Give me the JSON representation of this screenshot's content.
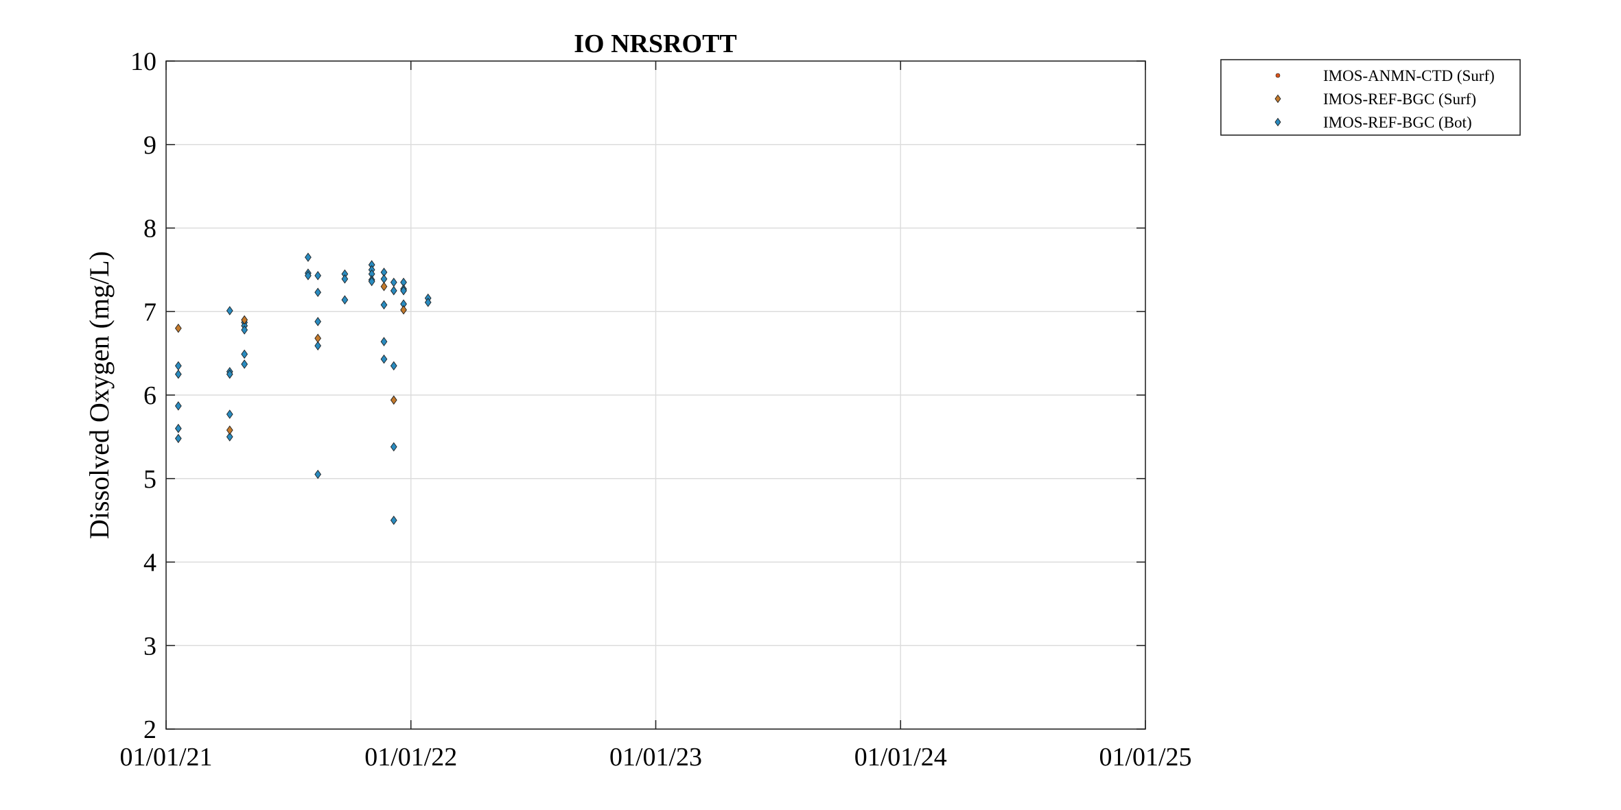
{
  "chart_data": {
    "type": "scatter",
    "title": "IO NRSROTT",
    "xlabel": "",
    "ylabel": "Dissolved Oxygen (mg/L)",
    "xlim": [
      2021.0,
      2025.0
    ],
    "ylim": [
      2,
      10
    ],
    "grid": true,
    "legend_position": "outside-top-right",
    "x_tick_values": [
      2021.0,
      2022.0,
      2023.0,
      2024.0,
      2025.0
    ],
    "x_tick_labels": [
      "01/01/21",
      "01/01/22",
      "01/01/23",
      "01/01/24",
      "01/01/25"
    ],
    "y_tick_values": [
      2,
      3,
      4,
      5,
      6,
      7,
      8,
      9,
      10
    ],
    "y_tick_labels": [
      "2",
      "3",
      "4",
      "5",
      "6",
      "7",
      "8",
      "9",
      "10"
    ],
    "series": [
      {
        "name": "IMOS-ANMN-CTD (Surf)",
        "marker": "dot",
        "color": "#d95319",
        "points": []
      },
      {
        "name": "IMOS-REF-BGC (Surf)",
        "marker": "diamond",
        "color": "#c47a2c",
        "points": [
          [
            2021.05,
            6.8
          ],
          [
            2021.26,
            5.58
          ],
          [
            2021.32,
            6.9
          ],
          [
            2021.62,
            6.68
          ],
          [
            2021.89,
            7.3
          ],
          [
            2021.93,
            5.94
          ],
          [
            2021.97,
            7.02
          ]
        ]
      },
      {
        "name": "IMOS-REF-BGC (Bot)",
        "marker": "diamond",
        "color": "#2a8bbf",
        "points": [
          [
            2021.05,
            6.35
          ],
          [
            2021.05,
            6.25
          ],
          [
            2021.05,
            5.87
          ],
          [
            2021.05,
            5.6
          ],
          [
            2021.05,
            5.48
          ],
          [
            2021.26,
            7.01
          ],
          [
            2021.26,
            6.28
          ],
          [
            2021.26,
            6.25
          ],
          [
            2021.26,
            5.77
          ],
          [
            2021.26,
            5.5
          ],
          [
            2021.32,
            6.87
          ],
          [
            2021.32,
            6.83
          ],
          [
            2021.32,
            6.78
          ],
          [
            2021.32,
            6.49
          ],
          [
            2021.32,
            6.37
          ],
          [
            2021.58,
            7.65
          ],
          [
            2021.58,
            7.46
          ],
          [
            2021.58,
            7.43
          ],
          [
            2021.62,
            7.43
          ],
          [
            2021.62,
            7.23
          ],
          [
            2021.62,
            6.88
          ],
          [
            2021.62,
            6.59
          ],
          [
            2021.62,
            5.05
          ],
          [
            2021.73,
            7.45
          ],
          [
            2021.73,
            7.39
          ],
          [
            2021.73,
            7.14
          ],
          [
            2021.84,
            7.56
          ],
          [
            2021.84,
            7.5
          ],
          [
            2021.84,
            7.45
          ],
          [
            2021.84,
            7.38
          ],
          [
            2021.84,
            7.36
          ],
          [
            2021.89,
            7.47
          ],
          [
            2021.89,
            7.39
          ],
          [
            2021.89,
            7.08
          ],
          [
            2021.89,
            6.64
          ],
          [
            2021.89,
            6.43
          ],
          [
            2021.93,
            7.35
          ],
          [
            2021.93,
            7.25
          ],
          [
            2021.93,
            6.35
          ],
          [
            2021.93,
            5.38
          ],
          [
            2021.93,
            4.5
          ],
          [
            2021.97,
            7.35
          ],
          [
            2021.97,
            7.27
          ],
          [
            2021.97,
            7.25
          ],
          [
            2021.97,
            7.09
          ],
          [
            2022.07,
            7.16
          ],
          [
            2022.07,
            7.11
          ]
        ]
      }
    ]
  }
}
